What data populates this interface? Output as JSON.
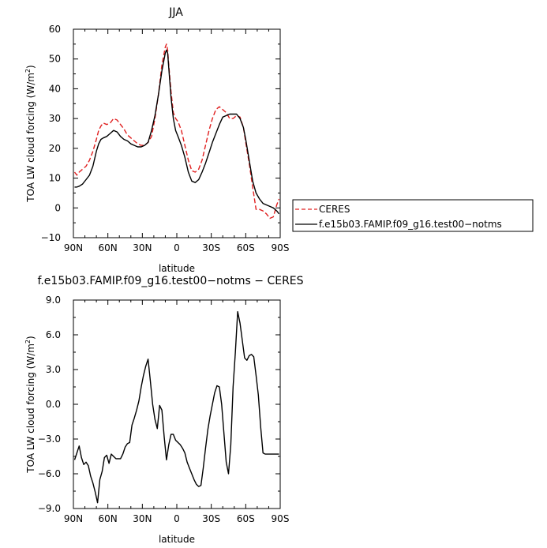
{
  "chart_data": [
    {
      "type": "line",
      "title": "JJA",
      "xlabel": "latitude",
      "ylabel": "TOA LW cloud forcing (W/m²)",
      "ylabel_parts": [
        "TOA LW cloud forcing (W/m",
        "2",
        ")"
      ],
      "xlim": [
        90,
        -90
      ],
      "ylim": [
        -10,
        60
      ],
      "xticks": [
        90,
        60,
        30,
        0,
        -30,
        -60,
        -90
      ],
      "xtick_labels": [
        "90N",
        "60N",
        "30N",
        "0",
        "30S",
        "60S",
        "90S"
      ],
      "yticks": [
        -10,
        0,
        10,
        20,
        30,
        40,
        50,
        60
      ],
      "ytick_labels": [
        "−10",
        "0",
        "10",
        "20",
        "30",
        "40",
        "50",
        "60"
      ],
      "grid": false,
      "legend": "right",
      "series": [
        {
          "name": "CERES",
          "color": "#e02020",
          "dash": "dashed",
          "x": [
            89,
            87,
            85,
            82,
            79,
            76,
            73,
            70,
            68,
            66,
            64,
            61,
            58,
            55,
            52,
            49,
            46,
            43,
            40,
            37,
            34,
            31,
            28,
            25,
            22,
            19,
            16,
            13,
            10,
            9,
            8,
            7,
            5,
            3,
            1,
            -1,
            -4,
            -7,
            -10,
            -13,
            -16,
            -19,
            -22,
            -25,
            -28,
            -31,
            -34,
            -37,
            -40,
            -43,
            -46,
            -49,
            -52,
            -55,
            -58,
            -60,
            -63,
            -66,
            -69,
            -72,
            -75,
            -78,
            -81,
            -84,
            -87,
            -89
          ],
          "y": [
            12,
            11,
            12,
            13,
            14,
            16,
            19,
            23,
            26,
            27.5,
            28.5,
            28,
            28.5,
            30,
            29.5,
            28,
            26.5,
            24.5,
            23.5,
            22.5,
            21.5,
            21,
            21,
            22,
            24,
            30,
            38,
            48,
            54,
            55,
            53,
            48,
            39,
            32,
            30,
            29,
            26,
            21,
            16,
            12.5,
            12,
            13,
            16,
            21,
            26,
            30,
            33,
            34,
            33,
            32,
            30,
            30,
            31,
            30.5,
            27,
            22,
            15,
            7,
            -0.5,
            -0.5,
            -1,
            -2,
            -3.5,
            -3,
            1,
            3
          ]
        },
        {
          "name": "f.e15b03.FAMIP.f09_g16.test00−notms",
          "color": "#000000",
          "dash": "solid",
          "x": [
            89,
            87,
            85,
            82,
            79,
            76,
            73,
            70,
            68,
            66,
            64,
            61,
            58,
            55,
            52,
            49,
            46,
            43,
            40,
            37,
            34,
            31,
            28,
            25,
            22,
            19,
            16,
            13,
            10,
            9,
            8,
            7,
            5,
            3,
            1,
            -1,
            -4,
            -7,
            -10,
            -13,
            -16,
            -19,
            -22,
            -25,
            -28,
            -31,
            -34,
            -37,
            -40,
            -43,
            -46,
            -49,
            -52,
            -55,
            -58,
            -60,
            -63,
            -66,
            -69,
            -72,
            -75,
            -78,
            -81,
            -84,
            -87,
            -89
          ],
          "y": [
            7,
            7,
            7.3,
            8,
            9.5,
            11,
            14,
            19,
            21.5,
            23,
            23.5,
            24,
            25,
            26,
            25.5,
            24,
            23,
            22.5,
            21.5,
            21,
            20.5,
            20.5,
            21,
            22,
            26,
            31,
            38,
            46,
            52,
            53,
            52,
            47,
            37,
            30,
            26,
            24,
            21,
            17,
            12,
            9,
            8.5,
            9.5,
            12,
            15,
            18.5,
            22,
            25,
            28,
            30.5,
            31,
            31.5,
            31.5,
            31.5,
            30,
            27,
            23,
            16,
            9,
            5,
            3,
            1.5,
            1,
            0.5,
            0,
            -1,
            -2
          ]
        }
      ]
    },
    {
      "type": "line",
      "title": "f.e15b03.FAMIP.f09_g16.test00−notms − CERES",
      "xlabel": "latitude",
      "ylabel": "TOA LW cloud forcing (W/m²)",
      "ylabel_parts": [
        "TOA LW cloud forcing (W/m",
        "2",
        ")"
      ],
      "xlim": [
        90,
        -90
      ],
      "ylim": [
        -9,
        9
      ],
      "xticks": [
        90,
        60,
        30,
        0,
        -30,
        -60,
        -90
      ],
      "xtick_labels": [
        "90N",
        "60N",
        "30N",
        "0",
        "30S",
        "60S",
        "90S"
      ],
      "yticks": [
        -9,
        -6,
        -3,
        0,
        3,
        6,
        9
      ],
      "ytick_labels": [
        "−9.0",
        "−6.0",
        "−3.0",
        "0.0",
        "3.0",
        "6.0",
        "9.0"
      ],
      "grid": false,
      "series": [
        {
          "color": "#000000",
          "dash": "solid",
          "x": [
            89,
            87,
            85,
            83,
            81,
            79,
            77,
            75,
            73,
            71,
            69,
            67,
            65,
            63,
            61,
            59,
            57,
            55,
            53,
            51,
            49,
            47,
            45,
            43,
            41,
            39,
            37,
            35,
            33,
            31,
            29,
            27,
            25,
            23,
            21,
            19,
            17,
            15,
            13,
            11,
            9,
            7,
            5,
            3,
            1,
            -1,
            -3,
            -5,
            -7,
            -9,
            -11,
            -13,
            -15,
            -17,
            -19,
            -21,
            -23,
            -25,
            -27,
            -29,
            -31,
            -33,
            -35,
            -37,
            -39,
            -41,
            -43,
            -45,
            -47,
            -49,
            -51,
            -53,
            -55,
            -57,
            -59,
            -61,
            -63,
            -65,
            -67,
            -69,
            -71,
            -73,
            -75,
            -77,
            -79,
            -81,
            -83,
            -85,
            -87,
            -89
          ],
          "y": [
            -4.8,
            -4.2,
            -3.6,
            -4.6,
            -5.2,
            -5.0,
            -5.3,
            -6.2,
            -6.8,
            -7.6,
            -8.5,
            -6.5,
            -5.8,
            -4.6,
            -4.4,
            -5.1,
            -4.3,
            -4.5,
            -4.7,
            -4.7,
            -4.7,
            -4.3,
            -3.7,
            -3.4,
            -3.3,
            -1.8,
            -1.2,
            -0.5,
            0.3,
            1.5,
            2.5,
            3.3,
            3.9,
            2.0,
            0.0,
            -1.3,
            -2.1,
            -0.1,
            -0.5,
            -2.8,
            -4.8,
            -3.5,
            -2.6,
            -2.6,
            -3.1,
            -3.3,
            -3.5,
            -3.8,
            -4.2,
            -5.0,
            -5.5,
            -6.0,
            -6.5,
            -6.9,
            -7.1,
            -7.0,
            -5.5,
            -3.8,
            -2.2,
            -1.0,
            0.0,
            1.0,
            1.6,
            1.5,
            0.0,
            -2.5,
            -5.0,
            -6.0,
            -3.5,
            1.5,
            4.5,
            8.0,
            7.0,
            5.5,
            4.0,
            3.8,
            4.2,
            4.3,
            4.1,
            2.5,
            0.8,
            -2.0,
            -4.2,
            -4.3,
            -4.3,
            -4.3,
            -4.3,
            -4.3,
            -4.3,
            -4.3
          ]
        }
      ]
    }
  ]
}
